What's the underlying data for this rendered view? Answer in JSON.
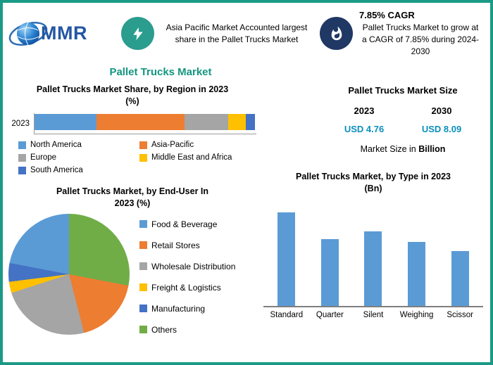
{
  "page_title": "Pallet Trucks Market",
  "logo": {
    "text": "MMR"
  },
  "badges": {
    "asia": {
      "icon": "lightning-icon",
      "text": "Asia Pacific Market Accounted largest share in the Pallet Trucks Market"
    },
    "cagr": {
      "icon": "flame-icon",
      "title": "7.85% CAGR",
      "text": "Pallet Trucks Market to grow at a CAGR of 7.85% during 2024-2030"
    }
  },
  "market_size": {
    "title": "Pallet Trucks Market Size",
    "years": [
      "2023",
      "2030"
    ],
    "values": [
      "USD 4.76",
      "USD 8.09"
    ],
    "note_prefix": "Market Size in ",
    "note_unit": "Billion"
  },
  "chart_data": [
    {
      "id": "region",
      "type": "bar",
      "variant": "horizontal-stacked",
      "title": "Pallet Trucks Market Share, by Region in 2023",
      "unit_label": "(%)",
      "categories": [
        "2023"
      ],
      "xlim": [
        0,
        100
      ],
      "legend_position": "bottom",
      "series": [
        {
          "name": "North America",
          "values": [
            28
          ],
          "color": "#5B9BD5"
        },
        {
          "name": "Asia-Pacific",
          "values": [
            40
          ],
          "color": "#ED7D31"
        },
        {
          "name": "Europe",
          "values": [
            20
          ],
          "color": "#A5A5A5"
        },
        {
          "name": "Middle East and Africa",
          "values": [
            8
          ],
          "color": "#FFC000"
        },
        {
          "name": "South America",
          "values": [
            4
          ],
          "color": "#4472C4"
        }
      ]
    },
    {
      "id": "end_user",
      "type": "pie",
      "title": "Pallet Trucks Market, by End-User In",
      "unit_label": "2023 (%)",
      "legend_position": "right",
      "legend": [
        {
          "name": "Food & Beverage",
          "color": "#5B9BD5"
        },
        {
          "name": "Retail Stores",
          "color": "#ED7D31"
        },
        {
          "name": "Wholesale Distribution",
          "color": "#A5A5A5"
        },
        {
          "name": "Freight & Logistics",
          "color": "#FFC000"
        },
        {
          "name": "Manufacturing",
          "color": "#4472C4"
        },
        {
          "name": "Others",
          "color": "#70AD47"
        }
      ],
      "slices_clockwise_from_top": [
        {
          "name": "Others",
          "value": 28,
          "color": "#70AD47"
        },
        {
          "name": "Retail Stores",
          "value": 18,
          "color": "#ED7D31"
        },
        {
          "name": "Wholesale Distribution",
          "value": 24,
          "color": "#A5A5A5"
        },
        {
          "name": "Freight & Logistics",
          "value": 3,
          "color": "#FFC000"
        },
        {
          "name": "Manufacturing",
          "value": 5,
          "color": "#4472C4"
        },
        {
          "name": "Food & Beverage",
          "value": 22,
          "color": "#5B9BD5"
        }
      ]
    },
    {
      "id": "type",
      "type": "bar",
      "title": "Pallet Trucks Market, by Type in 2023",
      "unit_label": "(Bn)",
      "categories": [
        "Standard",
        "Quarter",
        "Silent",
        "Weighing",
        "Scissor"
      ],
      "values": [
        1.26,
        0.9,
        1.0,
        0.86,
        0.74
      ],
      "ylim": [
        0,
        1.4
      ],
      "color": "#5B9BD5"
    }
  ],
  "colors": {
    "border": "#1a9a86",
    "title": "#13967f",
    "navy": "#1f3864",
    "teal": "#2a9d8f",
    "usd": "#0b8fbd"
  }
}
